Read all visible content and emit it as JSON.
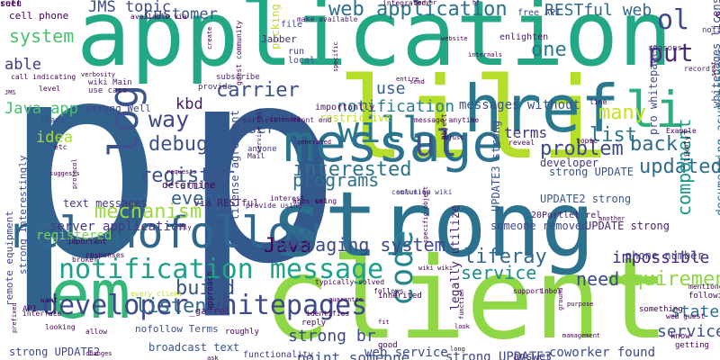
{
  "words": [
    {
      "text": "p",
      "color": "#31628e"
    },
    {
      "text": "p",
      "color": "#33598c"
    },
    {
      "text": "application",
      "color": "#22a884"
    },
    {
      "text": "client",
      "color": "#8fd744"
    },
    {
      "text": "strong",
      "color": "#2c728e"
    },
    {
      "text": "lili",
      "color": "#b5de2b"
    },
    {
      "text": "href",
      "color": "#2a788e"
    },
    {
      "text": "em",
      "color": "#35b779"
    },
    {
      "text": "message",
      "color": "#2c728e"
    },
    {
      "text": "rel nofollow",
      "color": "#30678d"
    },
    {
      "text": "will",
      "color": "#2a788e"
    },
    {
      "text": "log",
      "color": "#3b528b"
    },
    {
      "text": "li",
      "color": "#29af7f"
    },
    {
      "text": "notification message",
      "color": "#1fa088"
    },
    {
      "text": "developer whitepages",
      "color": "#3e4989"
    },
    {
      "text": "code",
      "color": "#25848e"
    },
    {
      "text": "Java",
      "color": "#440154"
    },
    {
      "text": "ul",
      "color": "#3b528b"
    },
    {
      "text": "web application",
      "color": "#2d708e"
    },
    {
      "text": "system",
      "color": "#4ac16d"
    },
    {
      "text": "JMS topic",
      "color": "#3e4a89"
    },
    {
      "text": "customer",
      "color": "#39558c"
    },
    {
      "text": "RESTful web",
      "color": "#31688e"
    },
    {
      "text": "ol",
      "color": "#3e4989"
    },
    {
      "text": "put",
      "color": "#472d7b"
    },
    {
      "text": "one",
      "color": "#2a788e"
    },
    {
      "text": "able",
      "color": "#453882"
    },
    {
      "text": "Java app",
      "color": "#44bf70"
    },
    {
      "text": "carrier",
      "color": "#3c508b"
    },
    {
      "text": "back",
      "color": "#2f6c8e"
    },
    {
      "text": "notification",
      "color": "#287d8e"
    },
    {
      "text": "use",
      "color": "#365d8d"
    },
    {
      "text": "kbd",
      "color": "#481a6c"
    },
    {
      "text": "way",
      "color": "#3f4788"
    },
    {
      "text": "debug",
      "color": "#3b528b"
    },
    {
      "text": "register",
      "color": "#3b528b"
    },
    {
      "text": "interested",
      "color": "#2c738e"
    },
    {
      "text": "updated",
      "color": "#2f6c8e"
    },
    {
      "text": "problem",
      "color": "#3f4889"
    },
    {
      "text": "list",
      "color": "#2c738e"
    },
    {
      "text": "many",
      "color": "#c8e020"
    },
    {
      "text": "idea",
      "color": "#a8db34"
    },
    {
      "text": "event",
      "color": "#34618d"
    },
    {
      "text": "mechanism",
      "color": "#9bd93c"
    },
    {
      "text": "programs",
      "color": "#2d708e"
    },
    {
      "text": "user",
      "color": "#39568c"
    },
    {
      "text": "messaging system",
      "color": "#3e4989"
    },
    {
      "text": "liferay",
      "color": "#31688e"
    },
    {
      "text": "requirements",
      "color": "#8ed645"
    },
    {
      "text": "service",
      "color": "#23898e"
    },
    {
      "text": "build",
      "color": "#3b528b"
    },
    {
      "text": "listen",
      "color": "#31688e"
    },
    {
      "text": "need",
      "color": "#3e4989"
    },
    {
      "text": "component",
      "color": "#1f988b"
    },
    {
      "text": "impossible",
      "color": "#482677"
    },
    {
      "text": "strong br",
      "color": "#3e4a89"
    },
    {
      "text": "service _ga",
      "color": "#3b528b"
    },
    {
      "text": "state",
      "color": "#2d708e"
    },
    {
      "text": "point someone",
      "color": "#3b528b"
    },
    {
      "text": "web service",
      "color": "#3e4989"
    },
    {
      "text": "strong UPDATE3",
      "color": "#3f4788"
    },
    {
      "text": "coworker found",
      "color": "#3e4989"
    },
    {
      "text": "broadcast text",
      "color": "#39568c"
    },
    {
      "text": "strong UPDATE2",
      "color": "#3e4989"
    },
    {
      "text": "functionality",
      "color": "#472f7d"
    },
    {
      "text": "answer",
      "color": "#443a83"
    },
    {
      "text": "messages without",
      "color": "#3b528b"
    },
    {
      "text": "terms",
      "color": "#46337e"
    },
    {
      "text": "server application",
      "color": "#453781"
    },
    {
      "text": "text messages",
      "color": "#453781"
    },
    {
      "text": "registered",
      "color": "#7ad151"
    },
    {
      "text": "pro whitepages",
      "color": "#3d4d8a"
    },
    {
      "text": "whitepages license",
      "color": "#3e4989"
    },
    {
      "text": "UPDATE strong",
      "color": "#482475"
    },
    {
      "text": "strong UPDATE",
      "color": "#3b528b"
    },
    {
      "text": "UPDATE2 strong",
      "color": "#39568c"
    },
    {
      "text": "UPDATE3 strong",
      "color": "#3b528b"
    },
    {
      "text": "documenting asynchronous",
      "color": "#2c728e"
    },
    {
      "text": "license agreement",
      "color": "#3e4989"
    },
    {
      "text": "legally utilize",
      "color": "#482071"
    },
    {
      "text": "someone removed",
      "color": "#3e4989"
    },
    {
      "text": "phone number",
      "color": "#404588"
    },
    {
      "text": "20Portlet rel",
      "color": "#481b6d"
    },
    {
      "text": "developer",
      "color": "#453781"
    },
    {
      "text": "strong Well",
      "color": "#3f4788"
    },
    {
      "text": "strong Interestingly",
      "color": "#3e4989"
    },
    {
      "text": "remote equipment",
      "color": "#3e4989"
    },
    {
      "text": "nofollow Terms",
      "color": "#3b528b"
    },
    {
      "text": "via RESTful",
      "color": "#481769"
    },
    {
      "text": "_ga rel",
      "color": "#482374"
    },
    {
      "text": "importantly",
      "color": "#481467"
    },
    {
      "text": "restrictive",
      "color": "#c2df23"
    },
    {
      "text": "picking",
      "color": "#bddf26"
    },
    {
      "text": "determine",
      "color": "#440154"
    },
    {
      "text": "still",
      "color": "#3e4a89"
    },
    {
      "text": "etc",
      "color": "#440154"
    },
    {
      "text": "Thank",
      "color": "#3f4889"
    },
    {
      "text": "cell phone",
      "color": "#440154"
    },
    {
      "text": "Jabber",
      "color": "#46307e"
    },
    {
      "text": "free API",
      "color": "#404688"
    },
    {
      "text": "enlighten",
      "color": "#481769"
    },
    {
      "text": "reasons",
      "color": "#472c7a"
    },
    {
      "text": "notified",
      "color": "#46307e"
    },
    {
      "text": "e",
      "color": "#440154"
    },
    {
      "text": "record",
      "color": "#481467"
    },
    {
      "text": "subscribe",
      "color": "#472d7b"
    },
    {
      "text": "provide",
      "color": "#472c7a"
    },
    {
      "text": "wiki Main",
      "color": "#482475"
    },
    {
      "text": "use case",
      "color": "#481a6c"
    },
    {
      "text": "local",
      "color": "#3b528b"
    },
    {
      "text": "run",
      "color": "#453781"
    },
    {
      "text": "file",
      "color": "#3e4a89"
    },
    {
      "text": "make available",
      "color": "#481b6d"
    },
    {
      "text": "guest community",
      "color": "#440154"
    },
    {
      "text": "portlets",
      "color": "#482071"
    },
    {
      "text": "front end",
      "color": "#482475"
    },
    {
      "text": "anyone",
      "color": "#453781"
    },
    {
      "text": "Mail",
      "color": "#471164"
    },
    {
      "text": "apps set",
      "color": "#460b5e"
    },
    {
      "text": "provide using",
      "color": "#481b6d"
    },
    {
      "text": "using",
      "color": "#440154"
    },
    {
      "text": "interest",
      "color": "#440154"
    },
    {
      "text": "object",
      "color": "#440154"
    },
    {
      "text": "message anytime",
      "color": "#440154"
    },
    {
      "text": "line",
      "color": "#440154"
    },
    {
      "text": "Example",
      "color": "#440154"
    },
    {
      "text": "likely",
      "color": "#440154"
    },
    {
      "text": "topic",
      "color": "#440154"
    },
    {
      "text": "reveal",
      "color": "#440154"
    },
    {
      "text": "solution",
      "color": "#440154"
    },
    {
      "text": "community wiki",
      "color": "#3f4788"
    },
    {
      "text": "every client",
      "color": "#c2df23"
    },
    {
      "text": "API",
      "color": "#440154"
    },
    {
      "text": "interface",
      "color": "#440154"
    },
    {
      "text": "looking",
      "color": "#440154"
    },
    {
      "text": "want",
      "color": "#440154"
    },
    {
      "text": "allow",
      "color": "#440154"
    },
    {
      "text": "roughly",
      "color": "#440154"
    },
    {
      "text": "identifies",
      "color": "#440154"
    },
    {
      "text": "typically solved",
      "color": "#440154"
    },
    {
      "text": "follows",
      "color": "#440154"
    },
    {
      "text": "inherited",
      "color": "#440154"
    },
    {
      "text": "reply",
      "color": "#440154"
    },
    {
      "text": "good",
      "color": "#440154"
    },
    {
      "text": "something",
      "color": "#440154"
    },
    {
      "text": "web guest",
      "color": "#440154"
    },
    {
      "text": "know",
      "color": "#440154"
    },
    {
      "text": "getting",
      "color": "#440154"
    },
    {
      "text": "following",
      "color": "#440154"
    },
    {
      "text": "mentioned",
      "color": "#440154"
    },
    {
      "text": "inbox",
      "color": "#440154"
    },
    {
      "text": "support",
      "color": "#440154"
    },
    {
      "text": "call indicating",
      "color": "#440154"
    },
    {
      "text": "level",
      "color": "#440154"
    },
    {
      "text": "important",
      "color": "#440154"
    },
    {
      "text": "broker",
      "color": "#440154"
    },
    {
      "text": "available via",
      "color": "#440154"
    },
    {
      "text": "integrated",
      "color": "#440154"
    },
    {
      "text": "hr",
      "color": "#440154"
    },
    {
      "text": "server",
      "color": "#440154"
    },
    {
      "text": "internals",
      "color": "#440154"
    },
    {
      "text": "website",
      "color": "#440154"
    },
    {
      "text": "specific",
      "color": "#440154"
    },
    {
      "text": "entire",
      "color": "#440154"
    },
    {
      "text": "send",
      "color": "#440154"
    },
    {
      "text": "verbosity",
      "color": "#440154"
    },
    {
      "text": "JMS",
      "color": "#440154"
    },
    {
      "text": "generated",
      "color": "#440154"
    },
    {
      "text": "adjust",
      "color": "#440154"
    },
    {
      "text": "intended",
      "color": "#440154"
    },
    {
      "text": "requests",
      "color": "#440154"
    },
    {
      "text": "suggests",
      "color": "#440154"
    },
    {
      "text": "protocol",
      "color": "#440154"
    },
    {
      "text": "another",
      "color": "#440154"
    },
    {
      "text": "fit",
      "color": "#440154"
    },
    {
      "text": "specific object",
      "color": "#440154"
    },
    {
      "text": "ground",
      "color": "#440154"
    },
    {
      "text": "management",
      "color": "#440154"
    },
    {
      "text": "purpose",
      "color": "#440154"
    },
    {
      "text": "guarantee",
      "color": "#440154"
    },
    {
      "text": "changes",
      "color": "#440154"
    },
    {
      "text": "prefixed",
      "color": "#440154"
    },
    {
      "text": "function",
      "color": "#440154"
    },
    {
      "text": "service call",
      "color": "#440154"
    },
    {
      "text": "approach",
      "color": "#440154"
    },
    {
      "text": "wiki wiki",
      "color": "#440154"
    },
    {
      "text": "responses",
      "color": "#440154"
    },
    {
      "text": "create",
      "color": "#440154"
    },
    {
      "text": "fly",
      "color": "#440154"
    },
    {
      "text": "ask",
      "color": "#440154"
    },
    {
      "text": "long",
      "color": "#440154"
    },
    {
      "text": "look",
      "color": "#440154"
    },
    {
      "text": "sent",
      "color": "#440154"
    },
    {
      "text": "rult",
      "color": "#440154"
    },
    {
      "text": "set",
      "color": "#440154"
    },
    {
      "text": "seen",
      "color": "#440154"
    }
  ]
}
